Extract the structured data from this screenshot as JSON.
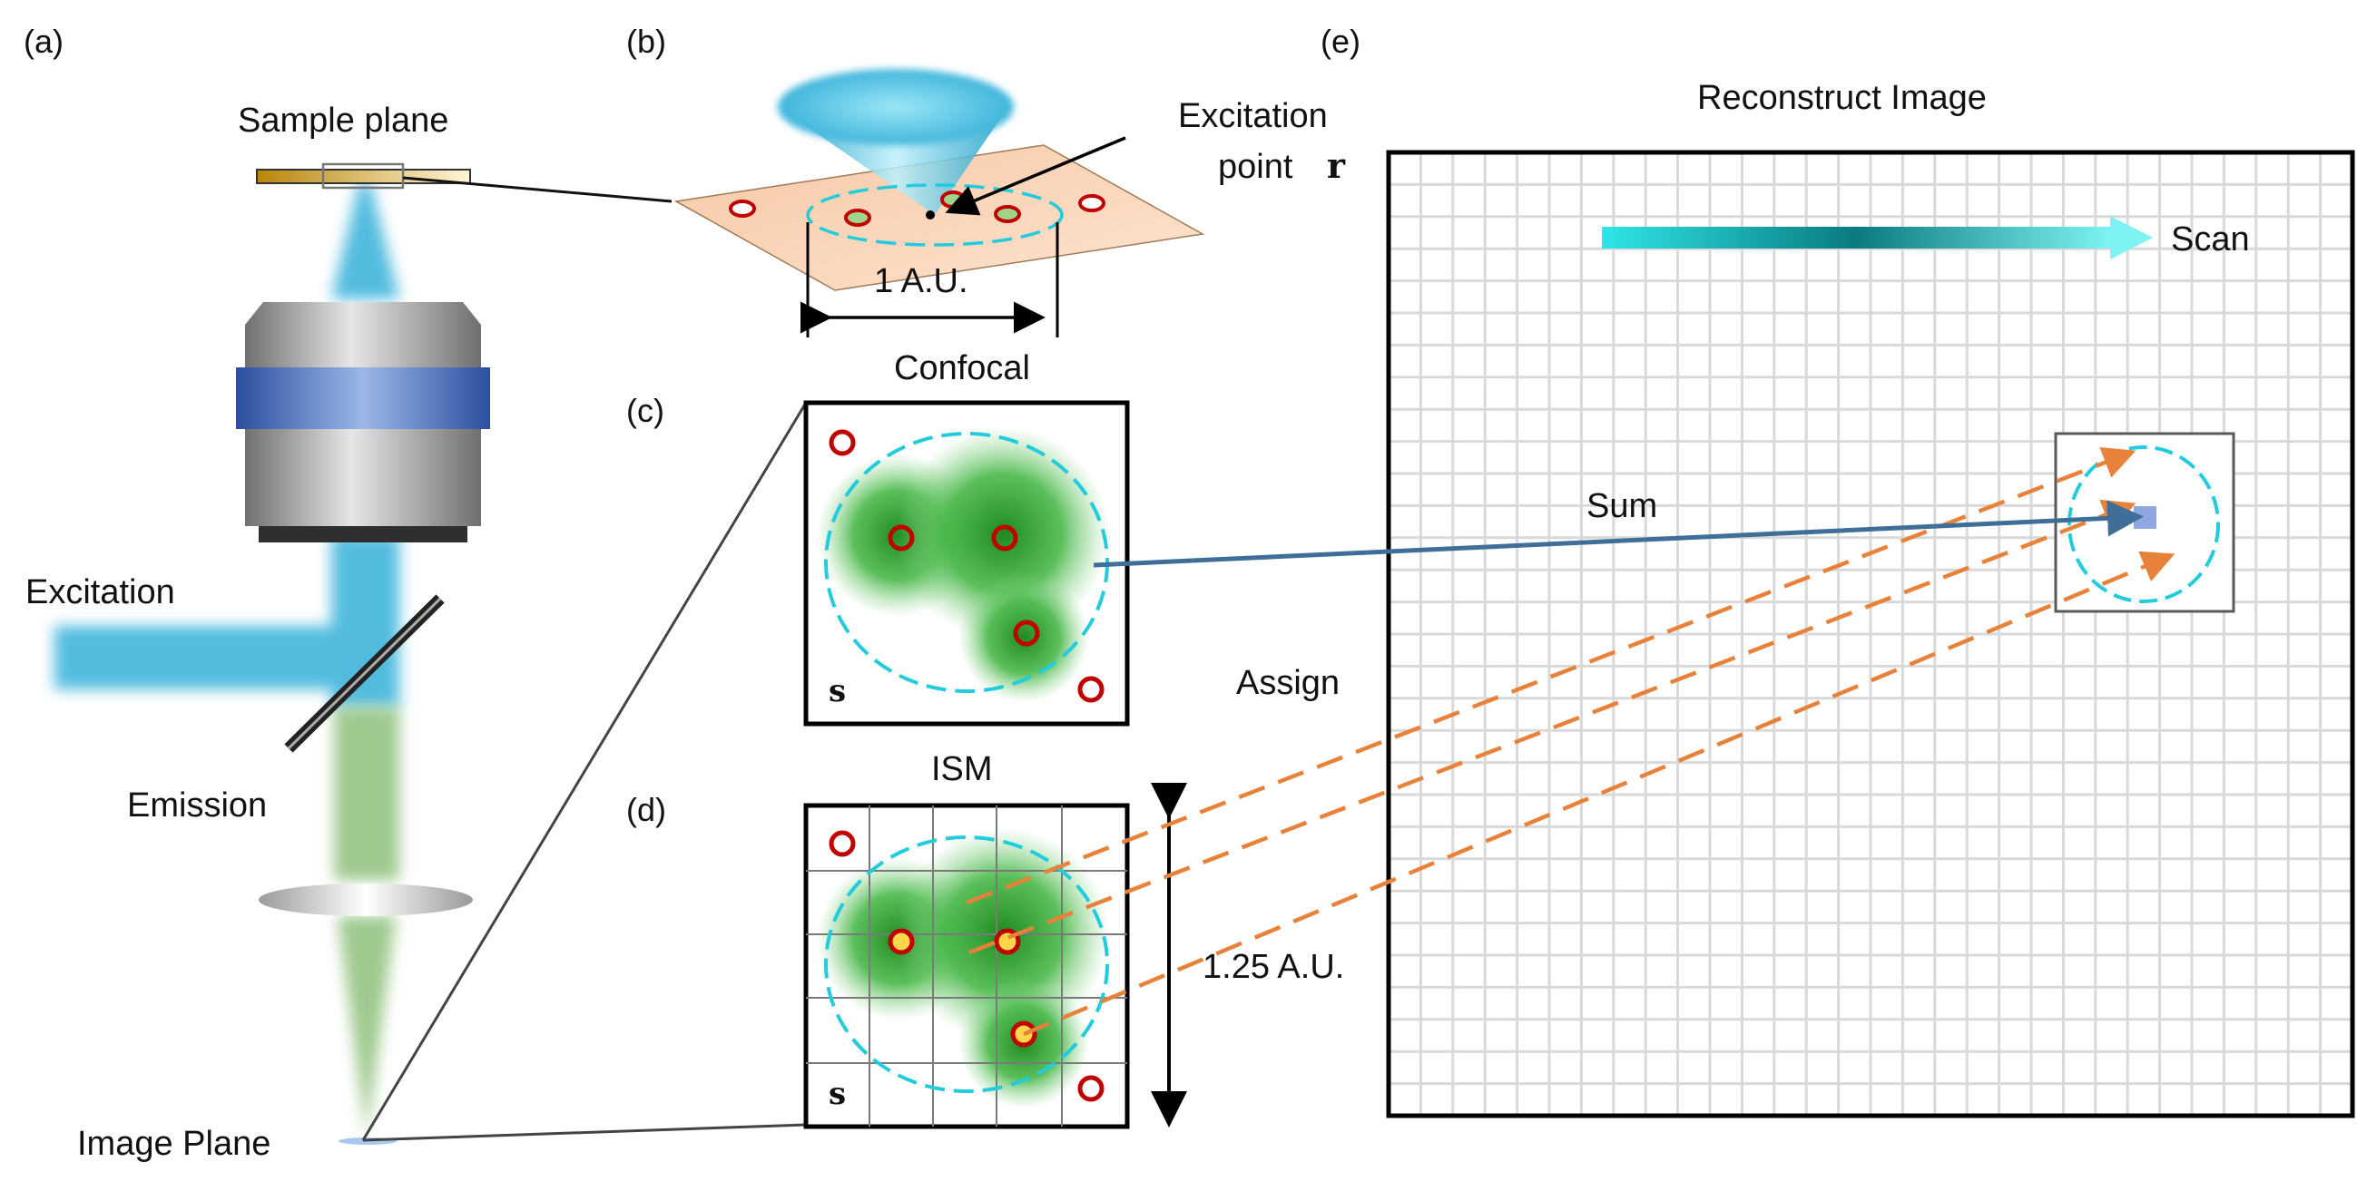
{
  "panels": {
    "a": "(a)",
    "b": "(b)",
    "c": "(c)",
    "d": "(d)",
    "e": "(e)"
  },
  "labels": {
    "sample_plane": "Sample plane",
    "excitation": "Excitation",
    "emission": "Emission",
    "image_plane": "Image Plane",
    "excitation_point_line1": "Excitation",
    "excitation_point_line2": "point",
    "excitation_point_symbol": "r",
    "airy_unit": "1 A.U.",
    "confocal": "Confocal",
    "ism": "ISM",
    "detector_symbol_c": "s",
    "detector_symbol_d": "s",
    "detector_size": "1.25 A.U.",
    "reconstruct_title": "Reconstruct Image",
    "scan": "Scan",
    "sum": "Sum",
    "assign": "Assign"
  },
  "colors": {
    "beam_blue": "#3fb5dc",
    "emission_green": "#8ec07a",
    "fluorophore_green": "#2f9e2f",
    "marker_red": "#c00000",
    "marker_yellow": "#ffd54a",
    "dashed_cyan": "#22ccdd",
    "assign_orange": "#e8823a",
    "sum_blue": "#3f6e99",
    "grid_gray": "#d9d9d9",
    "objective_band": "#3d5fae"
  }
}
